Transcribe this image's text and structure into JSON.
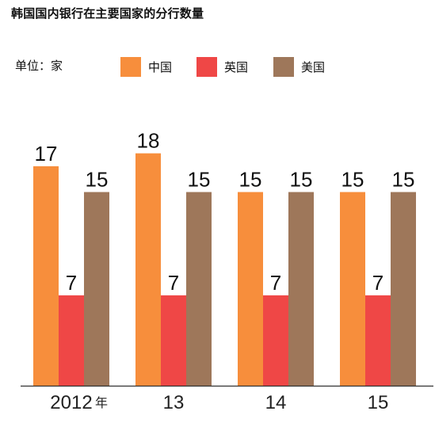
{
  "title": "韩国国内银行在主要国家的分行数量",
  "unit_label": "单位：家",
  "chart_data": {
    "type": "bar",
    "title": "韩国国内银行在主要国家的分行数量",
    "unit": "单位：家",
    "categories": [
      "2012",
      "13",
      "14",
      "15"
    ],
    "category_suffix": "年",
    "series": [
      {
        "name": "中国",
        "color": "#F78E3C",
        "values": [
          17,
          18,
          15,
          15
        ]
      },
      {
        "name": "英国",
        "color": "#EF4746",
        "values": [
          7,
          7,
          7,
          7
        ]
      },
      {
        "name": "美国",
        "color": "#9E775A",
        "values": [
          15,
          15,
          15,
          15
        ]
      }
    ],
    "xlabel": "",
    "ylabel": "",
    "ylim": [
      0,
      18
    ],
    "legend_position": "top",
    "grid": false,
    "data_labels": true
  }
}
